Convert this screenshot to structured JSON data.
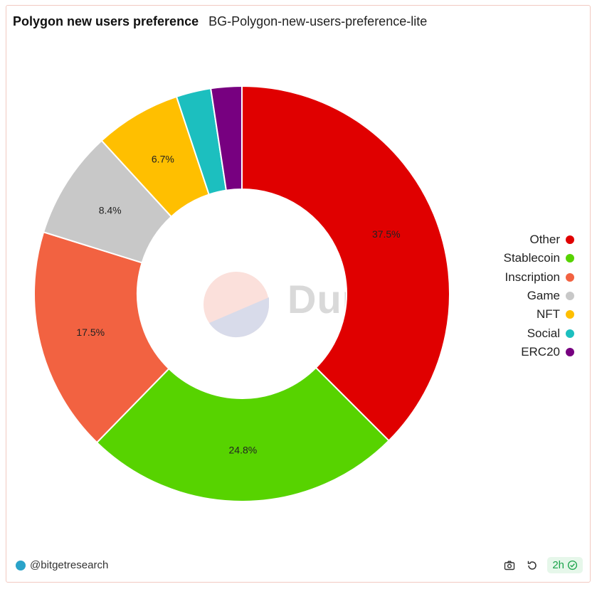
{
  "header": {
    "title": "Polygon new users preference",
    "subtitle": "BG-Polygon-new-users-preference-lite"
  },
  "chart_data": {
    "type": "pie",
    "donut": true,
    "slices": [
      {
        "label": "Other",
        "value": 37.5,
        "display": "37.5%",
        "color": "#e00000"
      },
      {
        "label": "Stablecoin",
        "value": 24.8,
        "display": "24.8%",
        "color": "#57d300"
      },
      {
        "label": "Inscription",
        "value": 17.5,
        "display": "17.5%",
        "color": "#f26241"
      },
      {
        "label": "Game",
        "value": 8.4,
        "display": "8.4%",
        "color": "#c8c8c8"
      },
      {
        "label": "NFT",
        "value": 6.7,
        "display": "6.7%",
        "color": "#ffbf00"
      },
      {
        "label": "Social",
        "value": 2.7,
        "display": "",
        "color": "#1cbfbf"
      },
      {
        "label": "ERC20",
        "value": 2.4,
        "display": "",
        "color": "#770080"
      }
    ],
    "legend_position": "right"
  },
  "watermark": {
    "text": "Dune"
  },
  "footer": {
    "author": "@bitgetresearch",
    "refresh_badge": "2h",
    "icons": [
      "camera-icon",
      "refresh-icon",
      "check-circle-icon"
    ]
  }
}
